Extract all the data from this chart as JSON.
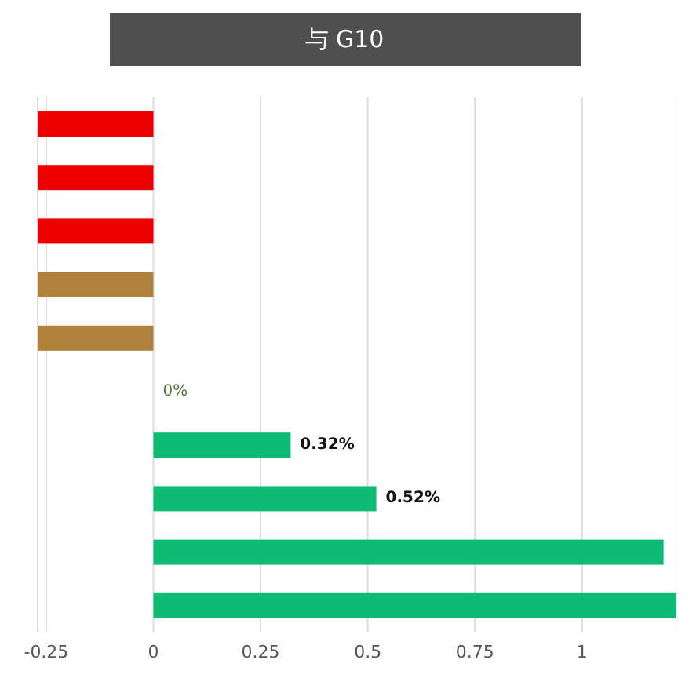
{
  "chart_data": {
    "type": "bar",
    "orientation": "horizontal",
    "title": "与 G10",
    "categories": [
      null,
      null,
      null,
      null,
      null,
      null,
      null,
      null,
      null,
      null
    ],
    "values": [
      -0.27,
      -0.27,
      -0.27,
      -0.27,
      -0.27,
      0,
      0.32,
      0.52,
      1.19,
      1.22
    ],
    "colors": [
      "#ee0000",
      "#ee0000",
      "#ee0000",
      "#b0813c",
      "#b0813c",
      "#0dbb74",
      "#0dbb74",
      "#0dbb74",
      "#0dbb74",
      "#0dbb74"
    ],
    "value_labels": [
      null,
      null,
      null,
      null,
      null,
      "0%",
      "0.32%",
      "0.52%",
      null,
      null
    ],
    "xlim": [
      -0.27,
      1.22
    ],
    "xticks": [
      -0.25,
      0,
      0.25,
      0.5,
      0.75,
      1
    ],
    "grid": "x",
    "tick_labels": "x"
  }
}
